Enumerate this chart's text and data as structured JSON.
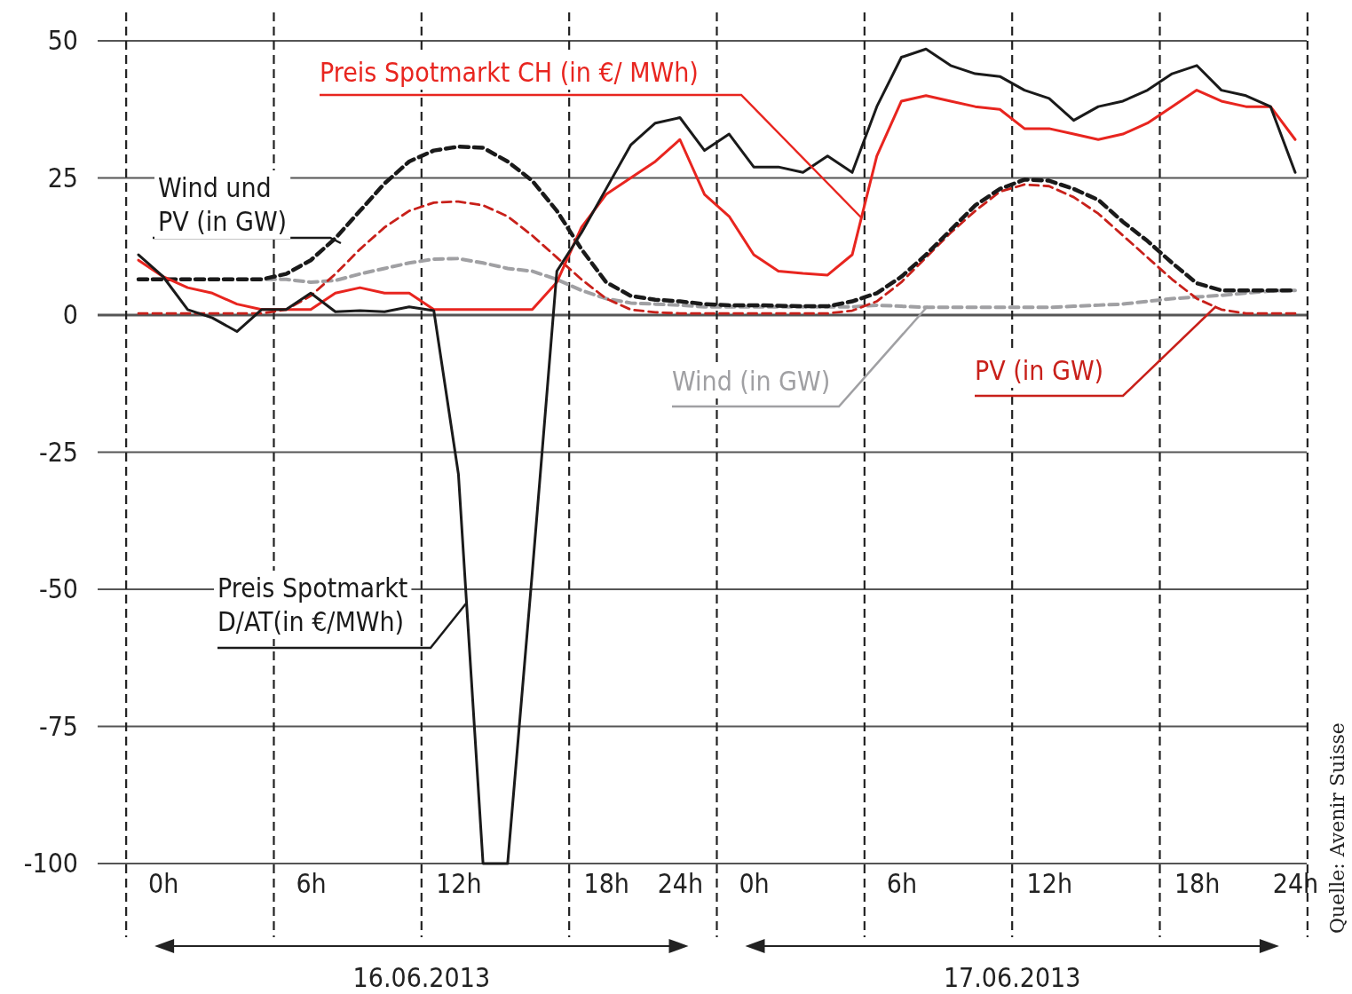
{
  "chart_data": {
    "type": "line",
    "categories": [
      null,
      "0h",
      null,
      null,
      null,
      null,
      null,
      "6h",
      null,
      null,
      null,
      null,
      null,
      "12h",
      null,
      null,
      null,
      null,
      null,
      "18h",
      null,
      null,
      "24h",
      null,
      null,
      "0h",
      null,
      null,
      null,
      null,
      null,
      "6h",
      null,
      null,
      null,
      null,
      null,
      "12h",
      null,
      null,
      null,
      null,
      null,
      "18h",
      null,
      null,
      null,
      "24h"
    ],
    "ylim": [
      -100,
      50
    ],
    "yticks": [
      -100,
      -75,
      -50,
      -25,
      0,
      25,
      50
    ],
    "grid": true,
    "series": [
      {
        "name": "Preis Spotmarkt CH (in €/ MWh)",
        "color": "#e8251f",
        "line_style": "solid",
        "values": [
          10,
          7,
          5,
          4,
          2,
          1,
          1,
          1,
          4,
          5,
          4,
          4,
          1,
          1,
          1,
          1,
          1,
          6,
          16,
          22,
          25,
          28,
          32,
          22,
          18,
          11,
          8,
          7.6,
          7.3,
          11,
          29,
          39,
          40,
          39,
          38,
          37.5,
          34,
          34,
          33,
          32,
          33,
          35,
          38,
          41,
          39,
          38,
          38,
          32
        ]
      },
      {
        "name": "Preis Spotmarkt D/AT(in €/MWh)",
        "color": "#1a1a1a",
        "line_style": "solid",
        "values": [
          11,
          7,
          1,
          -0.5,
          -3,
          1,
          1,
          4,
          0.6,
          0.8,
          0.6,
          1.5,
          0.8,
          -29,
          -100,
          -100,
          -47,
          8,
          15,
          23,
          31,
          35,
          36,
          30,
          33,
          27,
          27,
          26,
          29,
          26,
          38,
          47,
          48.5,
          45.5,
          44,
          43.5,
          41,
          39.5,
          35.5,
          38,
          39,
          41,
          44,
          45.5,
          41,
          40,
          38,
          26
        ]
      },
      {
        "name": "Wind und PV (in GW)",
        "color": "#1a1a1a",
        "line_style": "dashed",
        "values": [
          6.5,
          6.5,
          6.5,
          6.5,
          6.5,
          6.5,
          7.5,
          10,
          14,
          19,
          24,
          28,
          30,
          30.7,
          30.5,
          28,
          24.5,
          19,
          12,
          6,
          3.5,
          2.8,
          2.5,
          2,
          1.8,
          1.8,
          1.7,
          1.6,
          1.6,
          2.5,
          4,
          7,
          11,
          15.5,
          20,
          23,
          24.7,
          24.5,
          23,
          21,
          17,
          13.5,
          9.5,
          5.8,
          4.5,
          4.5,
          4.5,
          4.5
        ]
      },
      {
        "name": "Wind (in GW)",
        "color": "#a0a0a3",
        "line_style": "dashed",
        "values": [
          6.5,
          6.5,
          6.5,
          6.5,
          6.5,
          6.5,
          6.5,
          6,
          6.3,
          7.5,
          8.5,
          9.5,
          10.2,
          10.3,
          9.5,
          8.5,
          8,
          6.5,
          4.5,
          3,
          2.2,
          2,
          1.8,
          1.5,
          1.5,
          1.5,
          1.5,
          1.5,
          1.5,
          1.5,
          1.8,
          1.6,
          1.4,
          1.4,
          1.4,
          1.4,
          1.4,
          1.4,
          1.6,
          1.8,
          2,
          2.5,
          3,
          3.3,
          3.6,
          4,
          4.4,
          4.5
        ]
      },
      {
        "name": "PV (in GW)",
        "color": "#c8201a",
        "line_style": "dashed",
        "values": [
          0.3,
          0.3,
          0.3,
          0.3,
          0.3,
          0.3,
          1,
          3.5,
          7.5,
          12,
          16,
          19,
          20.5,
          20.7,
          20,
          18,
          14.5,
          10.5,
          6.5,
          3,
          1,
          0.5,
          0.3,
          0.3,
          0.3,
          0.3,
          0.3,
          0.3,
          0.3,
          0.8,
          2.5,
          6,
          10.5,
          15,
          19,
          22.5,
          23.8,
          23.5,
          21.5,
          18.5,
          14.5,
          10.5,
          6.5,
          3,
          1,
          0.3,
          0.3,
          0.3
        ]
      }
    ],
    "annotations": [
      "16.06.2013",
      "17.06.2013",
      "Quelle: Avenir Suisse"
    ]
  }
}
